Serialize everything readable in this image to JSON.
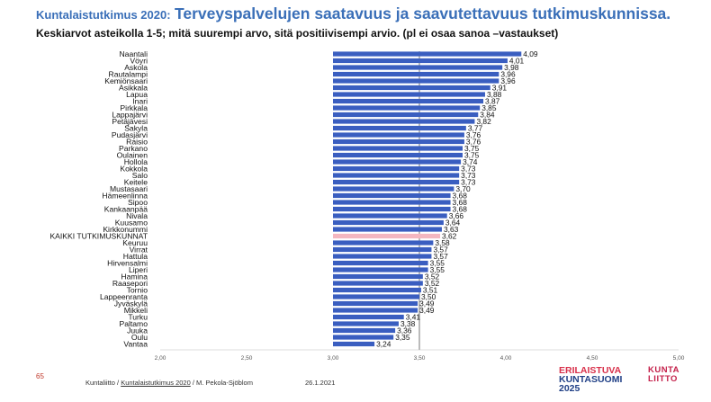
{
  "header": {
    "title_small": "Kuntalaistutkimus 2020:",
    "title_big": "Terveyspalvelujen saatavuus ja saavutettavuus tutkimuskunnissa.",
    "subtitle": "Keskiarvot asteikolla 1-5; mitä suurempi arvo, sitä positiivisempi arvio. (pl ei osaa sanoa –vastaukset)"
  },
  "colors": {
    "bar": "#3a5ec0",
    "highlight_bar": "#f4b7c0",
    "title": "#3a6fb8",
    "midline": "#555555"
  },
  "chart_data": {
    "type": "bar",
    "orientation": "horizontal",
    "categories": [
      "Naantali",
      "Vöyri",
      "Askola",
      "Rautalampi",
      "Kemiönsaari",
      "Asikkala",
      "Lapua",
      "Inari",
      "Pirkkala",
      "Lappajärvi",
      "Petäjävesi",
      "Sakyla",
      "Pudasjärvi",
      "Raisio",
      "Parkano",
      "Oulainen",
      "Hollola",
      "Kokkola",
      "Salo",
      "Keitele",
      "Mustasaari",
      "Hämeenlinna",
      "Sipoo",
      "Kankaanpää",
      "Nivala",
      "Kuusamo",
      "Kirkkonummi",
      "KAIKKI TUTKIMUSKUNNAT",
      "Keuruu",
      "Virrat",
      "Hattula",
      "Hirvensalmi",
      "Liperi",
      "Hamina",
      "Raasepori",
      "Tornio",
      "Lappeenranta",
      "Jyväskylä",
      "Mikkeli",
      "Turku",
      "Paltamo",
      "Juuka",
      "Oulu",
      "Vantaa"
    ],
    "values": [
      4.09,
      4.01,
      3.98,
      3.96,
      3.96,
      3.91,
      3.88,
      3.87,
      3.85,
      3.84,
      3.82,
      3.77,
      3.76,
      3.76,
      3.75,
      3.75,
      3.74,
      3.73,
      3.73,
      3.73,
      3.7,
      3.68,
      3.68,
      3.68,
      3.66,
      3.64,
      3.63,
      3.62,
      3.58,
      3.57,
      3.57,
      3.55,
      3.55,
      3.52,
      3.52,
      3.51,
      3.5,
      3.49,
      3.49,
      3.41,
      3.38,
      3.36,
      3.35,
      3.24
    ],
    "value_labels": [
      "4,09",
      "4,01",
      "3,98",
      "3,96",
      "3,96",
      "3,91",
      "3,88",
      "3,87",
      "3,85",
      "3,84",
      "3,82",
      "3,77",
      "3,76",
      "3,76",
      "3,75",
      "3,75",
      "3,74",
      "3,73",
      "3,73",
      "3,73",
      "3,70",
      "3,68",
      "3,68",
      "3,68",
      "3,66",
      "3,64",
      "3,63",
      "3,62",
      "3,58",
      "3,57",
      "3,57",
      "3,55",
      "3,55",
      "3,52",
      "3,52",
      "3,51",
      "3,50",
      "3,49",
      "3,49",
      "3,41",
      "3,38",
      "3,36",
      "3,35",
      "3,24"
    ],
    "highlight_category": "KAIKKI TUTKIMUSKUNNAT",
    "xlim": [
      2.0,
      5.0
    ],
    "xticks": [
      2.0,
      2.5,
      3.0,
      3.5,
      4.0,
      4.5,
      5.0
    ],
    "xtick_labels": [
      "2,00",
      "2,50",
      "3,00",
      "3,50",
      "4,00",
      "4,50",
      "5,00"
    ],
    "reference_line": 3.5,
    "grid": false
  },
  "footer": {
    "page_number": "65",
    "org": "Kuntaliitto",
    "sep": " / ",
    "link": "Kuntalaistutkimus 2020",
    "author": " / M. Pekola-Sjöblom",
    "date": "26.1.2021"
  },
  "logos": {
    "erilaistuva_1": "ERILAISTUVA",
    "erilaistuva_2": "KUNTASUOMI",
    "erilaistuva_3": "2025",
    "kuntaliitto_1": "KUNTA",
    "kuntaliitto_2": "LIITTO"
  }
}
